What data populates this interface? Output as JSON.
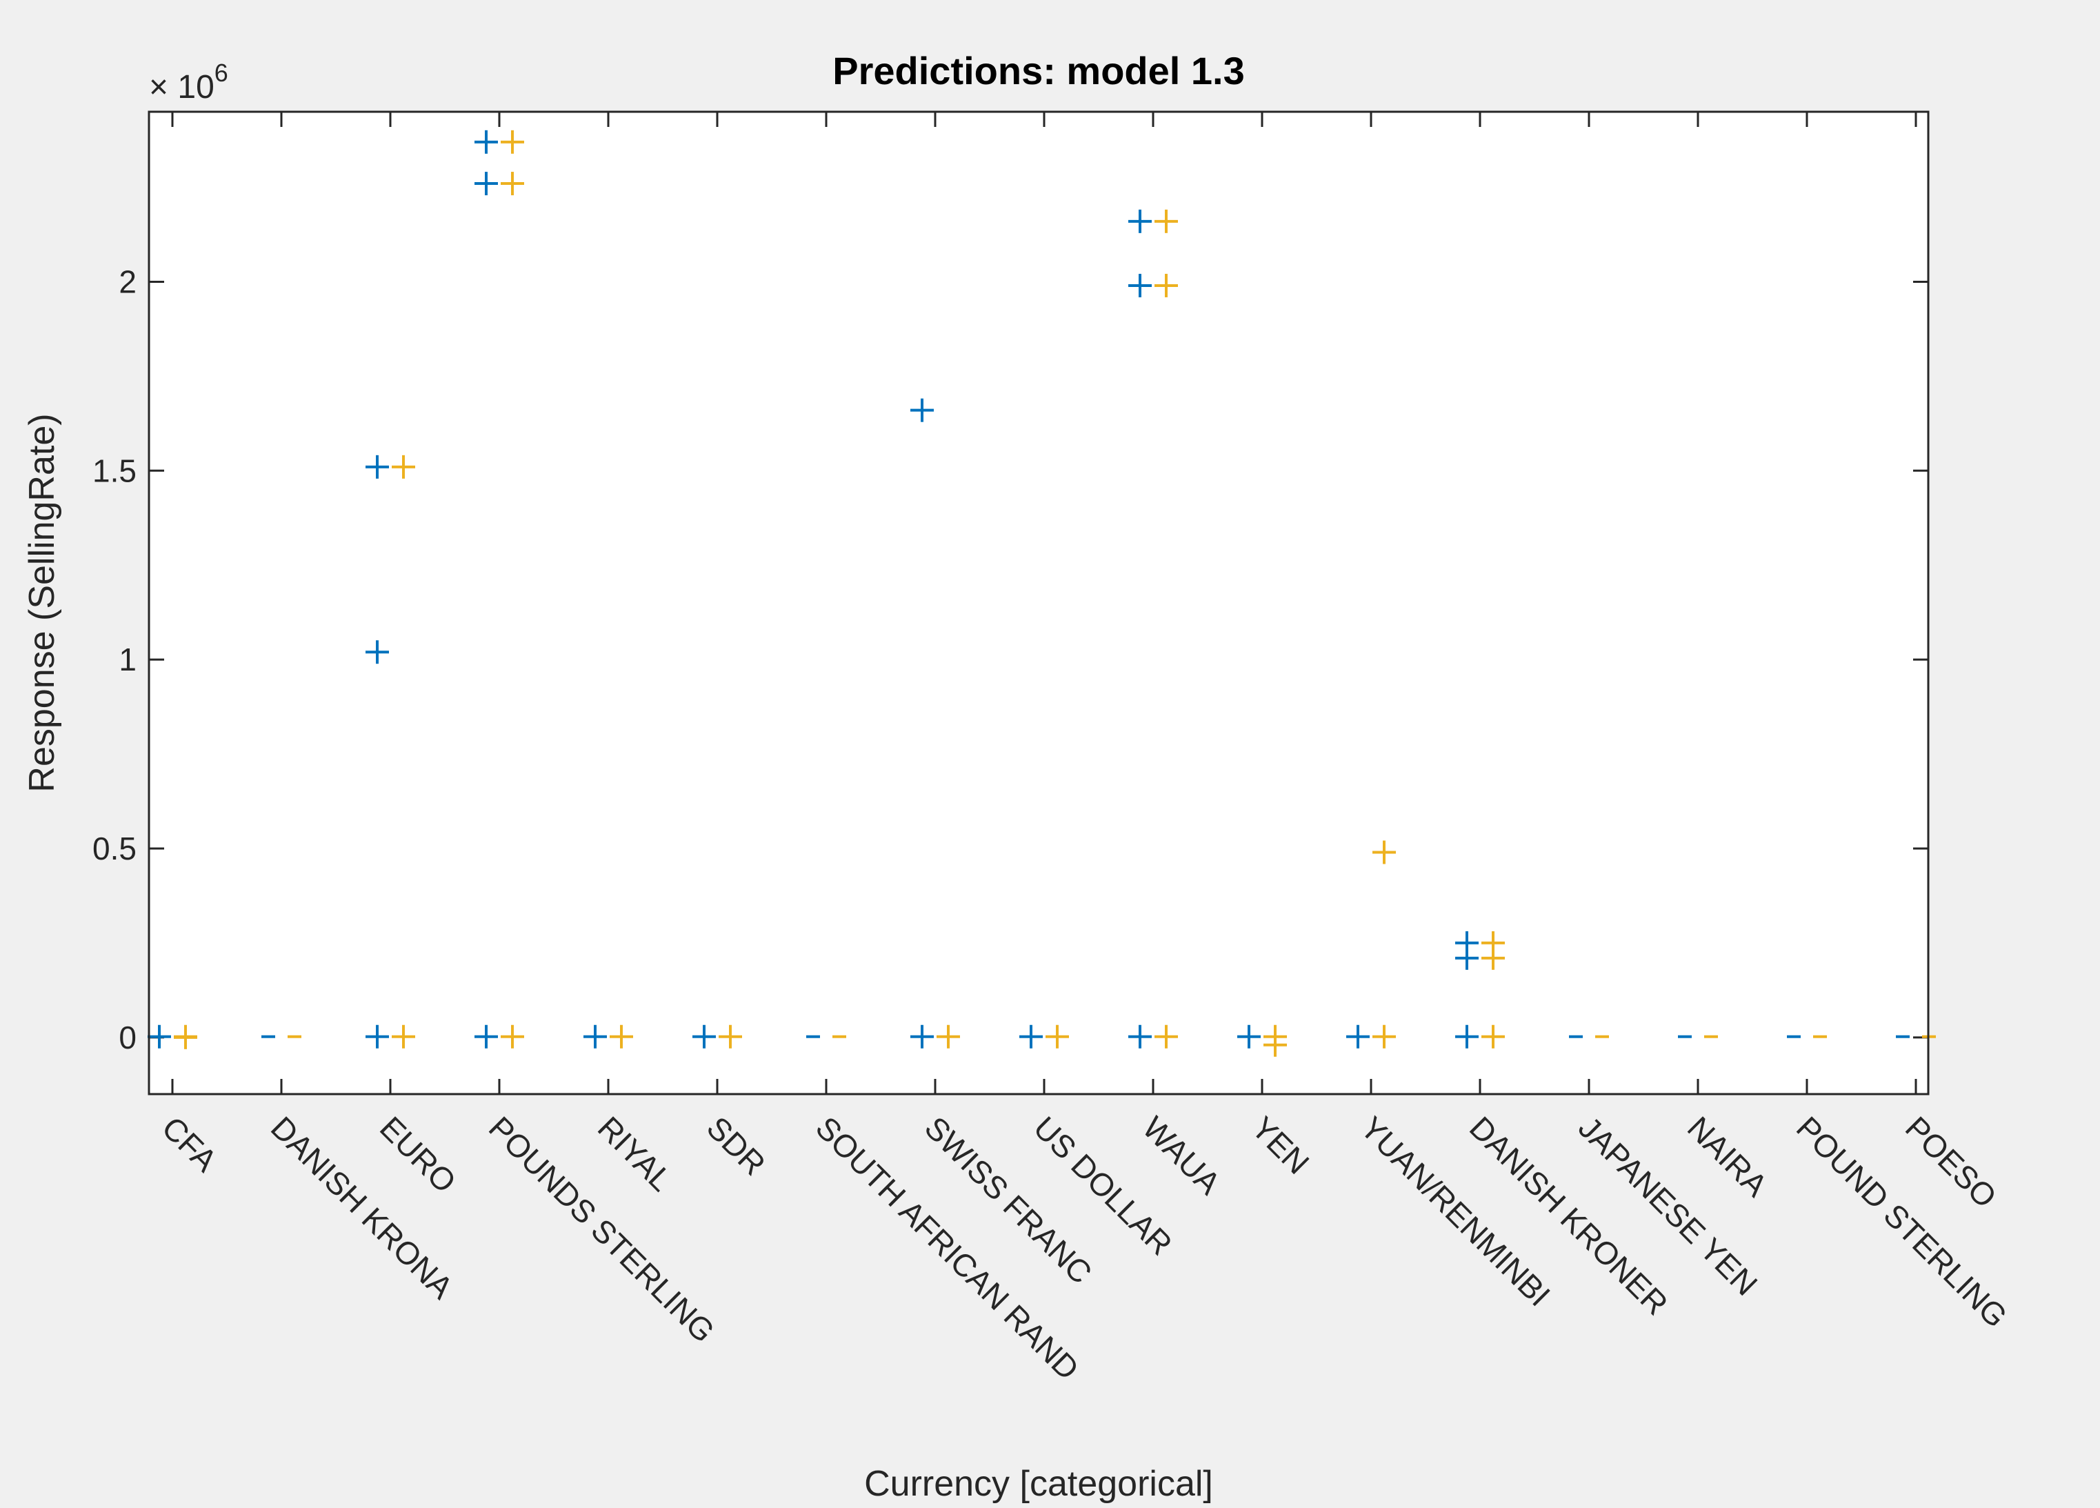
{
  "chart_data": {
    "type": "scatter",
    "title": "Predictions: model 1.3",
    "xlabel": "Currency [categorical]",
    "ylabel": "Response (SellingRate)",
    "exponent_base": "× 10",
    "exponent_power": "6",
    "ylim": [
      -0.15,
      2.45
    ],
    "y_ticks": [
      0,
      0.5,
      1,
      1.5,
      2
    ],
    "y_tick_labels": [
      "0",
      "0.5",
      "1",
      "1.5",
      "2"
    ],
    "grid": false,
    "legend": "none",
    "categories": [
      "CFA",
      "DANISH KRONA",
      "EURO",
      "POUNDS STERLING",
      "RIYAL",
      "SDR",
      "SOUTH AFRICAN RAND",
      "SWISS FRANC",
      "US DOLLAR",
      "WAUA",
      "YEN",
      "YUAN/RENMINBI",
      "DANISH KRONER",
      "JAPANESE YEN",
      "NAIRA",
      "POUND STERLING",
      "POESO"
    ],
    "series": [
      {
        "color": "#0072bd",
        "marker": "+",
        "points": [
          {
            "x": "CFA",
            "y": 0.002
          },
          {
            "x": "EURO",
            "y": 1.51
          },
          {
            "x": "EURO",
            "y": 1.02
          },
          {
            "x": "EURO",
            "y": 0.002
          },
          {
            "x": "POUNDS STERLING",
            "y": 2.37
          },
          {
            "x": "POUNDS STERLING",
            "y": 2.26
          },
          {
            "x": "POUNDS STERLING",
            "y": 0.002
          },
          {
            "x": "RIYAL",
            "y": 0.002
          },
          {
            "x": "SDR",
            "y": 0.002
          },
          {
            "x": "SWISS FRANC",
            "y": 1.66
          },
          {
            "x": "SWISS FRANC",
            "y": 0.002
          },
          {
            "x": "US DOLLAR",
            "y": 0.002
          },
          {
            "x": "WAUA",
            "y": 2.16
          },
          {
            "x": "WAUA",
            "y": 1.99
          },
          {
            "x": "WAUA",
            "y": 0.002
          },
          {
            "x": "YEN",
            "y": 0.002
          },
          {
            "x": "YUAN/RENMINBI",
            "y": 0.002
          },
          {
            "x": "DANISH KRONER",
            "y": 0.25
          },
          {
            "x": "DANISH KRONER",
            "y": 0.21
          },
          {
            "x": "DANISH KRONER",
            "y": 0.002
          }
        ],
        "dash_points": [
          {
            "x": "DANISH KRONA",
            "y": 0.002
          },
          {
            "x": "SOUTH AFRICAN RAND",
            "y": 0.002
          },
          {
            "x": "JAPANESE YEN",
            "y": 0.002
          },
          {
            "x": "NAIRA",
            "y": 0.002
          },
          {
            "x": "POUND STERLING",
            "y": 0.002
          },
          {
            "x": "POESO",
            "y": 0.002
          }
        ]
      },
      {
        "color": "#edb120",
        "marker": "+",
        "points": [
          {
            "x": "CFA",
            "y": 0.0
          },
          {
            "x": "CFA",
            "y": 0.002
          },
          {
            "x": "EURO",
            "y": 1.51
          },
          {
            "x": "EURO",
            "y": 0.002
          },
          {
            "x": "POUNDS STERLING",
            "y": 2.37
          },
          {
            "x": "POUNDS STERLING",
            "y": 2.26
          },
          {
            "x": "POUNDS STERLING",
            "y": 0.002
          },
          {
            "x": "RIYAL",
            "y": 0.002
          },
          {
            "x": "SDR",
            "y": 0.002
          },
          {
            "x": "SWISS FRANC",
            "y": 0.002
          },
          {
            "x": "US DOLLAR",
            "y": 0.002
          },
          {
            "x": "WAUA",
            "y": 2.16
          },
          {
            "x": "WAUA",
            "y": 1.99
          },
          {
            "x": "WAUA",
            "y": 0.002
          },
          {
            "x": "YEN",
            "y": -0.02
          },
          {
            "x": "YEN",
            "y": 0.002
          },
          {
            "x": "YUAN/RENMINBI",
            "y": 0.49
          },
          {
            "x": "YUAN/RENMINBI",
            "y": 0.002
          },
          {
            "x": "DANISH KRONER",
            "y": 0.25
          },
          {
            "x": "DANISH KRONER",
            "y": 0.21
          },
          {
            "x": "DANISH KRONER",
            "y": 0.002
          }
        ],
        "dash_points": [
          {
            "x": "DANISH KRONA",
            "y": 0.002
          },
          {
            "x": "SOUTH AFRICAN RAND",
            "y": 0.002
          },
          {
            "x": "JAPANESE YEN",
            "y": 0.002
          },
          {
            "x": "NAIRA",
            "y": 0.002
          },
          {
            "x": "POUND STERLING",
            "y": 0.002
          },
          {
            "x": "POESO",
            "y": 0.002
          }
        ]
      }
    ]
  }
}
